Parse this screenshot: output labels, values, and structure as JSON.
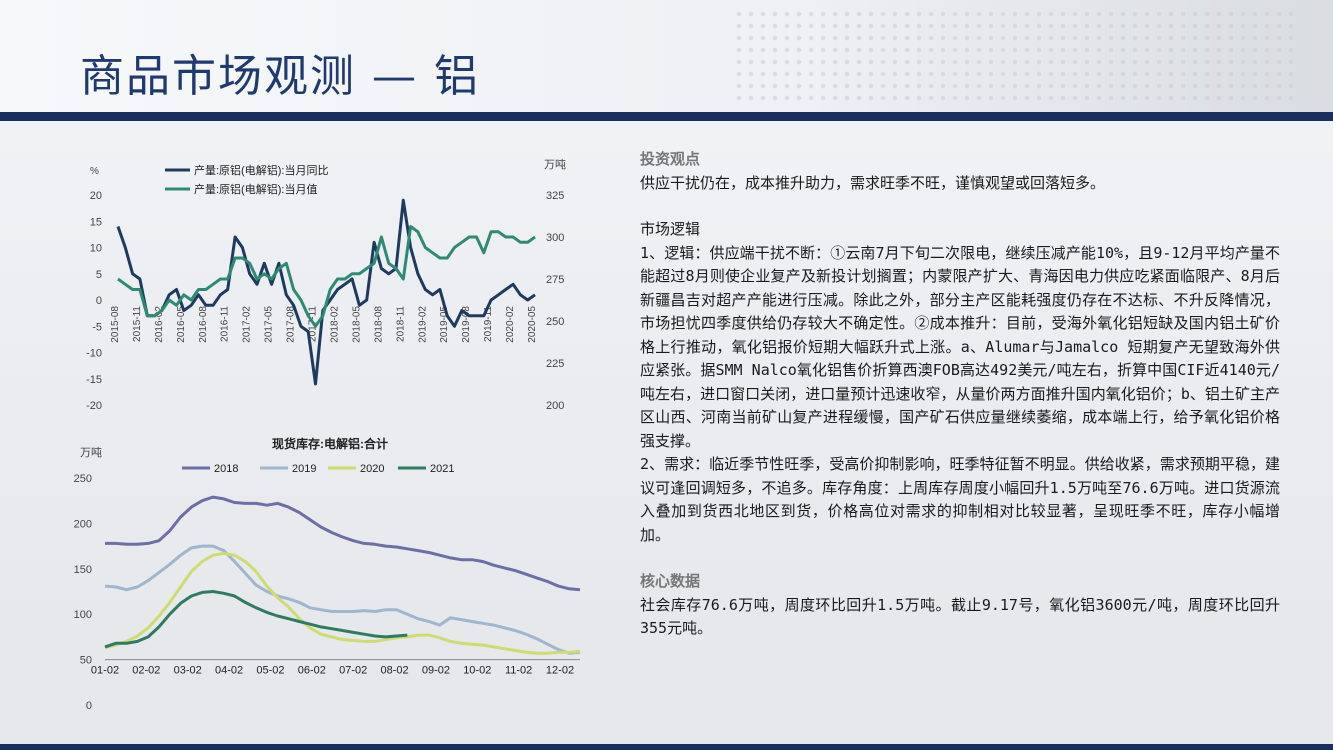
{
  "title": "商品市场观测 — 铝",
  "colors": {
    "brand": "#1b2f5e",
    "line_dark": "#1f3a5f",
    "line_green": "#2e8b73",
    "s2018": "#6b6fa6",
    "s2019": "#9fb6cf",
    "s2020": "#cfdc6e",
    "s2021": "#2e7b62"
  },
  "right_panel": {
    "invest_view_heading": "投资观点",
    "invest_view_text": "供应干扰仍在，成本推升助力，需求旺季不旺，谨慎观望或回落短多。",
    "market_logic_heading": "市场逻辑",
    "market_logic_p1": "1、逻辑：供应端干扰不断：①云南7月下旬二次限电，继续压减产能10%，且9-12月平均产量不能超过8月则使企业复产及新投计划搁置；内蒙限产扩大、青海因电力供应吃紧面临限产、8月后新疆昌吉对超产产能进行压减。除此之外，部分主产区能耗强度仍存在不达标、不升反降情况，市场担忧四季度供给仍存较大不确定性。②成本推升：目前，受海外氧化铝短缺及国内铝土矿价格上行推动，氧化铝报价短期大幅跃升式上涨。a、Alumar与Jamalco 短期复产无望致海外供应紧张。据SMM Nalco氧化铝售价折算西澳FOB高达492美元/吨左右，折算中国CIF近4140元/吨左右，进口窗口关闭，进口量预计迅速收窄，从量价两方面推升国内氧化铝价；b、铝土矿主产区山西、河南当前矿山复产进程缓慢，国产矿石供应量继续萎缩，成本端上行，给予氧化铝价格强支撑。",
    "market_logic_p2": "2、需求：临近季节性旺季，受高价抑制影响，旺季特征暂不明显。供给收紧，需求预期平稳，建议可逢回调短多，不追多。库存角度：上周库存周度小幅回升1.5万吨至76.6万吨。进口货源流入叠加到货西北地区到货，价格高位对需求的抑制相对比较显著，呈现旺季不旺，库存小幅增加。",
    "core_data_heading": "核心数据",
    "core_data_text": "社会库存76.6万吨，周度环比回升1.5万吨。截止9.17号，氧化铝3600元/吨，周度环比回升355元吨。"
  },
  "chart_data": [
    {
      "type": "line",
      "ylabel_left": "%",
      "ylabel_right": "万吨",
      "left_ticks": [
        "20",
        "15",
        "10",
        "5",
        "0",
        "-5",
        "-10",
        "-15",
        "-20"
      ],
      "right_ticks": [
        "325",
        "300",
        "275",
        "250",
        "225",
        "200"
      ],
      "ylim_left": [
        -20,
        20
      ],
      "ylim_right": [
        200,
        325
      ],
      "x_tick_labels": [
        "2015-08",
        "2015-11",
        "2016-02",
        "2016-05",
        "2016-08",
        "2016-11",
        "2017-02",
        "2017-05",
        "2017-08",
        "2017-11",
        "2018-02",
        "2018-05",
        "2018-08",
        "2018-11",
        "2019-02",
        "2019-05",
        "2019-08",
        "2019-11",
        "2020-02",
        "2020-05"
      ],
      "legend": [
        "产量:原铝(电解铝):当月同比",
        "产量:原铝(电解铝):当月值"
      ],
      "series": [
        {
          "name": "产量:原铝(电解铝):当月同比",
          "axis": "left",
          "values": [
            14,
            10,
            5,
            4,
            -3,
            -3,
            -2,
            1,
            2,
            -2,
            -1,
            1,
            -1,
            -1,
            1,
            2,
            12,
            10,
            5,
            3,
            7,
            3,
            7,
            1,
            -1,
            -5,
            -6,
            -16,
            -2,
            0,
            2,
            3,
            4,
            -1,
            0,
            11,
            6,
            5,
            6,
            19,
            10,
            5,
            2,
            1,
            2,
            -3,
            -5,
            -2,
            -3,
            -3,
            -3,
            0,
            1,
            2,
            3,
            1,
            0,
            1
          ]
        },
        {
          "name": "产量:原铝(电解铝):当月值",
          "axis": "left",
          "values": [
            4,
            3,
            2,
            2,
            -3,
            -3,
            -2,
            0,
            -1,
            1,
            0,
            2,
            2,
            3,
            4,
            4,
            8,
            8,
            7,
            4,
            5,
            4,
            6,
            7,
            2,
            0,
            -3,
            -5,
            -3,
            2,
            4,
            4,
            5,
            5,
            6,
            7,
            12,
            7,
            6,
            4,
            14,
            13,
            10,
            9,
            8,
            8,
            10,
            11,
            12,
            12,
            9,
            13,
            13,
            12,
            12,
            11,
            11,
            12
          ]
        }
      ]
    },
    {
      "type": "line",
      "title": "现货库存:电解铝:合计",
      "ylabel": "万吨",
      "ylim": [
        0,
        250
      ],
      "y_ticks": [
        "250",
        "200",
        "150",
        "100",
        "50",
        "0"
      ],
      "x_tick_labels": [
        "01-02",
        "02-02",
        "03-02",
        "04-02",
        "05-02",
        "06-02",
        "07-02",
        "08-02",
        "09-02",
        "10-02",
        "11-02",
        "12-02"
      ],
      "legend": [
        "2018",
        "2019",
        "2020",
        "2021"
      ],
      "series": [
        {
          "name": "2018",
          "values": [
            178,
            178,
            177,
            177,
            178,
            181,
            192,
            207,
            218,
            225,
            229,
            227,
            223,
            222,
            222,
            220,
            222,
            218,
            212,
            204,
            196,
            190,
            185,
            181,
            178,
            177,
            175,
            174,
            172,
            170,
            168,
            165,
            162,
            160,
            160,
            158,
            154,
            151,
            148,
            144,
            140,
            136,
            131,
            128,
            127
          ]
        },
        {
          "name": "2019",
          "values": [
            131,
            130,
            127,
            130,
            137,
            146,
            155,
            165,
            173,
            175,
            175,
            170,
            158,
            145,
            132,
            125,
            120,
            117,
            113,
            107,
            105,
            103,
            103,
            103,
            104,
            103,
            105,
            105,
            100,
            95,
            92,
            88,
            96,
            94,
            92,
            90,
            88,
            85,
            82,
            78,
            73,
            67,
            61,
            57,
            58
          ]
        },
        {
          "name": "2020",
          "values": [
            63,
            66,
            70,
            76,
            85,
            98,
            113,
            130,
            147,
            158,
            165,
            167,
            165,
            158,
            147,
            131,
            118,
            108,
            95,
            85,
            78,
            75,
            72,
            71,
            70,
            70,
            72,
            74,
            75,
            77,
            77,
            74,
            70,
            68,
            67,
            66,
            64,
            62,
            60,
            58,
            57,
            57,
            58,
            58,
            59
          ]
        },
        {
          "name": "2021",
          "values": [
            64,
            68,
            68,
            70,
            75,
            86,
            100,
            112,
            120,
            124,
            125,
            123,
            120,
            113,
            107,
            102,
            98,
            95,
            92,
            89,
            86,
            84,
            82,
            80,
            78,
            76,
            75,
            76,
            77
          ]
        }
      ]
    }
  ]
}
